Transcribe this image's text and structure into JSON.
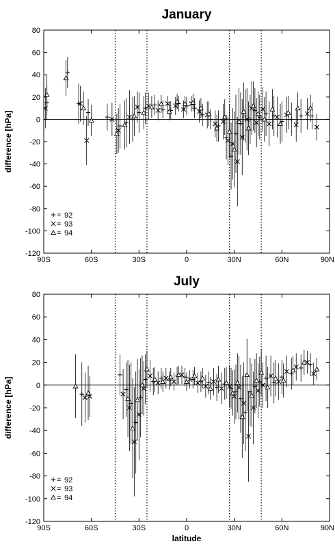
{
  "chart_data": [
    {
      "type": "scatter",
      "title": "January",
      "xlabel": "",
      "ylabel": "difference [hPa]",
      "xlim": [
        -90,
        90
      ],
      "ylim": [
        -120,
        80
      ],
      "x_ticks": [
        -90,
        -60,
        -30,
        0,
        30,
        60,
        90
      ],
      "x_tick_labels": [
        "90S",
        "60S",
        "30S",
        "0",
        "30N",
        "60N",
        "90N"
      ],
      "y_ticks": [
        -120,
        -100,
        -80,
        -60,
        -40,
        -20,
        0,
        20,
        40,
        60,
        80
      ],
      "y_tick_labels": [
        "-120",
        "-100",
        "-80",
        "-60",
        "-40",
        "-20",
        "0",
        "20",
        "40",
        "60",
        "80"
      ],
      "zero_line": true,
      "dotted_vertical_lines": [
        -45,
        -25,
        27,
        47
      ],
      "legend_position": "bottom-left",
      "error_bars": true,
      "series": [
        {
          "name": "92",
          "marker": "+",
          "points": [
            [
              -88,
              15,
              15
            ],
            [
              -75,
              42,
              14
            ],
            [
              -68,
              14,
              18
            ],
            [
              -62,
              6,
              12
            ],
            [
              -50,
              2,
              12
            ],
            [
              -42,
              -6,
              20
            ],
            [
              -38,
              -3,
              22
            ],
            [
              -34,
              0,
              20
            ],
            [
              -30,
              6,
              18
            ],
            [
              -26,
              10,
              14
            ],
            [
              -20,
              13,
              9
            ],
            [
              -15,
              9,
              8
            ],
            [
              -10,
              8,
              8
            ],
            [
              -5,
              14,
              7
            ],
            [
              0,
              12,
              8
            ],
            [
              5,
              10,
              9
            ],
            [
              10,
              4,
              10
            ],
            [
              15,
              0,
              9
            ],
            [
              20,
              -6,
              14
            ],
            [
              25,
              -16,
              20
            ],
            [
              28,
              -33,
              30
            ],
            [
              31,
              -13,
              35
            ],
            [
              34,
              -4,
              28
            ],
            [
              37,
              3,
              24
            ],
            [
              40,
              0,
              22
            ],
            [
              43,
              8,
              20
            ],
            [
              46,
              2,
              20
            ],
            [
              50,
              5,
              20
            ],
            [
              55,
              3,
              18
            ],
            [
              60,
              -2,
              18
            ],
            [
              66,
              0,
              15
            ],
            [
              72,
              3,
              15
            ],
            [
              79,
              3,
              12
            ]
          ]
        },
        {
          "name": "93",
          "marker": "x",
          "points": [
            [
              -89,
              10,
              18
            ],
            [
              -67,
              14,
              16
            ],
            [
              -63,
              -19,
              22
            ],
            [
              -47,
              0,
              15
            ],
            [
              -43,
              -10,
              20
            ],
            [
              -36,
              2,
              24
            ],
            [
              -31,
              11,
              14
            ],
            [
              -24,
              12,
              12
            ],
            [
              -18,
              8,
              9
            ],
            [
              -12,
              14,
              7
            ],
            [
              -7,
              12,
              8
            ],
            [
              -2,
              9,
              8
            ],
            [
              3,
              14,
              7
            ],
            [
              8,
              7,
              10
            ],
            [
              13,
              4,
              12
            ],
            [
              18,
              -4,
              12
            ],
            [
              23,
              -2,
              16
            ],
            [
              26,
              -19,
              22
            ],
            [
              29,
              -22,
              32
            ],
            [
              32,
              -38,
              40
            ],
            [
              35,
              -16,
              34
            ],
            [
              38,
              0,
              28
            ],
            [
              41,
              10,
              24
            ],
            [
              44,
              -3,
              22
            ],
            [
              48,
              9,
              20
            ],
            [
              52,
              -4,
              20
            ],
            [
              57,
              2,
              18
            ],
            [
              63,
              4,
              16
            ],
            [
              69,
              -5,
              15
            ],
            [
              76,
              5,
              14
            ],
            [
              82,
              -7,
              12
            ]
          ]
        },
        {
          "name": "94",
          "marker": "triangle",
          "points": [
            [
              -88,
              22,
              18
            ],
            [
              -76,
              37,
              16
            ],
            [
              -65,
              10,
              15
            ],
            [
              -60,
              -1,
              14
            ],
            [
              -44,
              -13,
              18
            ],
            [
              -39,
              -5,
              22
            ],
            [
              -33,
              3,
              18
            ],
            [
              -27,
              6,
              15
            ],
            [
              -22,
              11,
              10
            ],
            [
              -16,
              14,
              8
            ],
            [
              -11,
              7,
              8
            ],
            [
              -6,
              16,
              7
            ],
            [
              -1,
              14,
              7
            ],
            [
              4,
              15,
              8
            ],
            [
              9,
              10,
              9
            ],
            [
              14,
              5,
              11
            ],
            [
              19,
              -8,
              12
            ],
            [
              24,
              2,
              16
            ],
            [
              27,
              -11,
              24
            ],
            [
              30,
              -27,
              34
            ],
            [
              33,
              -2,
              30
            ],
            [
              36,
              7,
              26
            ],
            [
              39,
              -8,
              24
            ],
            [
              42,
              12,
              22
            ],
            [
              45,
              5,
              20
            ],
            [
              49,
              0,
              20
            ],
            [
              54,
              9,
              18
            ],
            [
              59,
              -4,
              18
            ],
            [
              64,
              6,
              15
            ],
            [
              70,
              10,
              14
            ],
            [
              78,
              10,
              12
            ]
          ]
        }
      ]
    },
    {
      "type": "scatter",
      "title": "July",
      "xlabel": "latitude",
      "ylabel": "difference [hPa]",
      "xlim": [
        -90,
        90
      ],
      "ylim": [
        -120,
        80
      ],
      "x_ticks": [
        -90,
        -60,
        -30,
        0,
        30,
        60,
        90
      ],
      "x_tick_labels": [
        "90S",
        "60S",
        "30S",
        "0",
        "30N",
        "60N",
        "90N"
      ],
      "y_ticks": [
        -120,
        -100,
        -80,
        -60,
        -40,
        -20,
        0,
        20,
        40,
        60,
        80
      ],
      "y_tick_labels": [
        "-120",
        "-100",
        "-80",
        "-60",
        "-40",
        "-20",
        "0",
        "20",
        "40",
        "60",
        "80"
      ],
      "zero_line": true,
      "dotted_vertical_lines": [
        -45,
        -25,
        27,
        47
      ],
      "legend_position": "bottom-left",
      "error_bars": true,
      "series": [
        {
          "name": "92",
          "marker": "+",
          "points": [
            [
              -66,
              -8,
              28
            ],
            [
              -42,
              9,
              18
            ],
            [
              -38,
              -4,
              24
            ],
            [
              -35,
              -16,
              36
            ],
            [
              -32,
              -33,
              45
            ],
            [
              -29,
              -11,
              35
            ],
            [
              -26,
              5,
              22
            ],
            [
              -21,
              3,
              12
            ],
            [
              -16,
              6,
              9
            ],
            [
              -11,
              4,
              8
            ],
            [
              -6,
              8,
              8
            ],
            [
              -1,
              7,
              8
            ],
            [
              4,
              5,
              8
            ],
            [
              9,
              3,
              9
            ],
            [
              14,
              2,
              10
            ],
            [
              19,
              -2,
              12
            ],
            [
              24,
              1,
              14
            ],
            [
              28,
              -3,
              18
            ],
            [
              31,
              -6,
              24
            ],
            [
              34,
              -12,
              30
            ],
            [
              37,
              -24,
              34
            ],
            [
              40,
              -6,
              30
            ],
            [
              43,
              -1,
              24
            ],
            [
              46,
              3,
              22
            ],
            [
              50,
              6,
              20
            ],
            [
              55,
              2,
              18
            ],
            [
              60,
              7,
              15
            ],
            [
              66,
              10,
              14
            ],
            [
              72,
              15,
              12
            ],
            [
              78,
              18,
              10
            ]
          ]
        },
        {
          "name": "93",
          "marker": "x",
          "points": [
            [
              -64,
              -11,
              22
            ],
            [
              -61,
              -10,
              18
            ],
            [
              -40,
              -8,
              22
            ],
            [
              -36,
              -20,
              38
            ],
            [
              -33,
              -50,
              48
            ],
            [
              -30,
              -26,
              40
            ],
            [
              -27,
              -3,
              24
            ],
            [
              -23,
              8,
              14
            ],
            [
              -18,
              2,
              10
            ],
            [
              -13,
              6,
              9
            ],
            [
              -8,
              3,
              8
            ],
            [
              -3,
              9,
              8
            ],
            [
              2,
              5,
              8
            ],
            [
              7,
              2,
              9
            ],
            [
              12,
              -1,
              10
            ],
            [
              17,
              3,
              12
            ],
            [
              22,
              -3,
              14
            ],
            [
              27,
              -1,
              18
            ],
            [
              30,
              -10,
              24
            ],
            [
              33,
              -2,
              28
            ],
            [
              36,
              -16,
              36
            ],
            [
              39,
              -45,
              40
            ],
            [
              42,
              -20,
              32
            ],
            [
              45,
              -5,
              24
            ],
            [
              48,
              0,
              20
            ],
            [
              53,
              8,
              18
            ],
            [
              58,
              3,
              16
            ],
            [
              63,
              12,
              14
            ],
            [
              69,
              16,
              12
            ],
            [
              76,
              20,
              10
            ],
            [
              80,
              10,
              10
            ]
          ]
        },
        {
          "name": "94",
          "marker": "triangle",
          "points": [
            [
              -70,
              -1,
              28
            ],
            [
              -62,
              -7,
              24
            ],
            [
              -37,
              -12,
              34
            ],
            [
              -34,
              -38,
              44
            ],
            [
              -31,
              -13,
              36
            ],
            [
              -28,
              0,
              26
            ],
            [
              -25,
              14,
              16
            ],
            [
              -20,
              5,
              11
            ],
            [
              -15,
              3,
              9
            ],
            [
              -10,
              7,
              8
            ],
            [
              -5,
              9,
              8
            ],
            [
              0,
              3,
              8
            ],
            [
              5,
              8,
              8
            ],
            [
              10,
              6,
              9
            ],
            [
              15,
              -3,
              10
            ],
            [
              20,
              5,
              12
            ],
            [
              25,
              2,
              14
            ],
            [
              29,
              -7,
              20
            ],
            [
              32,
              2,
              26
            ],
            [
              35,
              -28,
              36
            ],
            [
              38,
              9,
              32
            ],
            [
              41,
              -9,
              28
            ],
            [
              44,
              4,
              24
            ],
            [
              47,
              11,
              20
            ],
            [
              51,
              -2,
              18
            ],
            [
              56,
              6,
              16
            ],
            [
              61,
              4,
              15
            ],
            [
              67,
              13,
              13
            ],
            [
              74,
              20,
              11
            ],
            [
              82,
              14,
              10
            ]
          ]
        }
      ]
    }
  ]
}
